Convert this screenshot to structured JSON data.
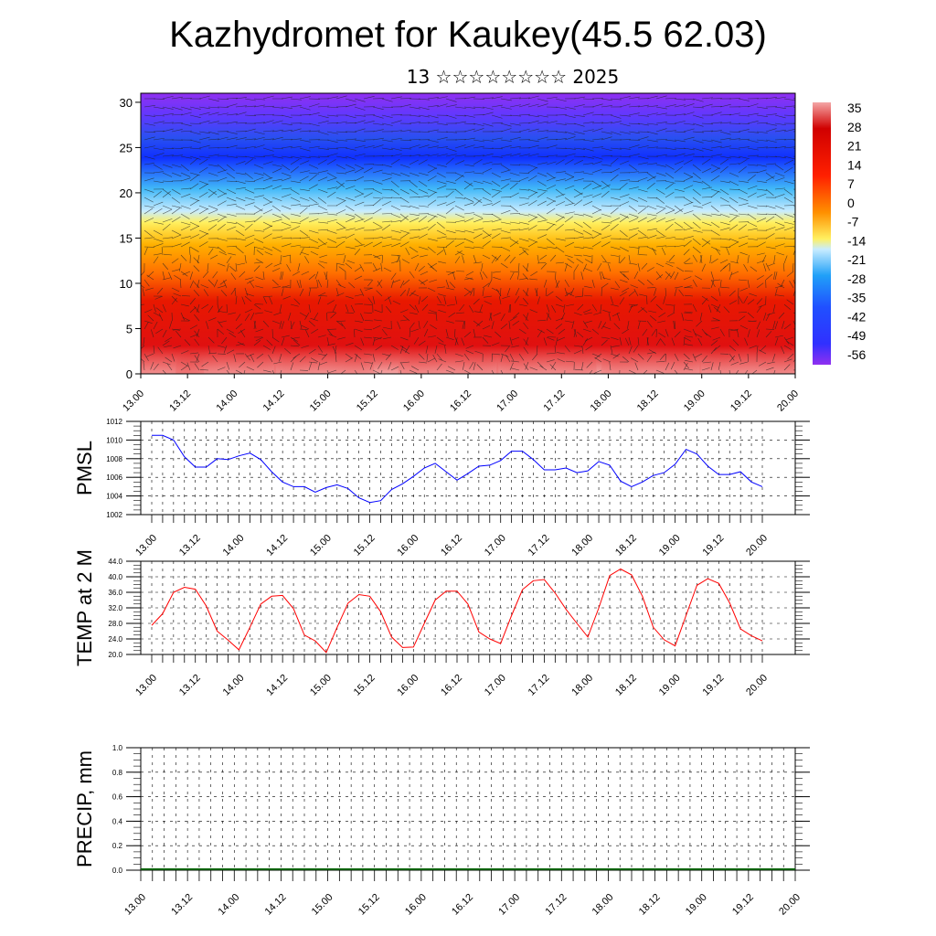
{
  "title": "Kazhydromet for Kaukey(45.5 62.03)",
  "subtitle": "13 ☆☆☆☆☆☆☆☆ 2025",
  "chart_data": [
    {
      "type": "heatmap",
      "y_ticks": [
        0,
        5,
        10,
        15,
        20,
        25,
        30
      ],
      "ylim": [
        0,
        31
      ],
      "x_ticks": [
        "13.00",
        "13.12",
        "14.00",
        "14.12",
        "15.00",
        "15.12",
        "16.00",
        "16.12",
        "17.00",
        "17.12",
        "18.00",
        "18.12",
        "19.00",
        "19.12",
        "20.00"
      ],
      "colorbar_labels": [
        "35",
        "28",
        "21",
        "14",
        "7",
        "0",
        "-7",
        "-14",
        "-21",
        "-28",
        "-35",
        "-42",
        "-49",
        "-56"
      ],
      "colors": {
        "hot": "#f0a0a0",
        "red": "#e00000",
        "orange": "#ff8800",
        "yellow": "#ffee44",
        "lightblue": "#90d8ff",
        "blue": "#2060ff",
        "purple": "#8030ff"
      }
    },
    {
      "type": "line",
      "ylabel": "PMSL",
      "ylim": [
        1002,
        1012
      ],
      "y_ticks": [
        "1012",
        "1010",
        "1008",
        "1006",
        "1004",
        "1002"
      ],
      "x_ticks": [
        "13.00",
        "13.12",
        "14.00",
        "14.12",
        "15.00",
        "15.12",
        "16.00",
        "16.12",
        "17.00",
        "17.12",
        "18.00",
        "18.12",
        "19.00",
        "19.12",
        "20.00"
      ],
      "series": [
        {
          "color": "#0000ff",
          "values": [
            1010.5,
            1010.5,
            1010.0,
            1008.2,
            1007.1,
            1007.1,
            1008.0,
            1007.9,
            1008.3,
            1008.6,
            1007.9,
            1006.6,
            1005.5,
            1005.0,
            1005.0,
            1004.4,
            1004.9,
            1005.2,
            1004.8,
            1003.8,
            1003.3,
            1003.5,
            1004.7,
            1005.3,
            1006.1,
            1007.0,
            1007.5,
            1006.6,
            1005.7,
            1006.4,
            1007.2,
            1007.3,
            1007.8,
            1008.8,
            1008.8,
            1007.9,
            1006.8,
            1006.8,
            1007.0,
            1006.5,
            1006.7,
            1007.7,
            1007.3,
            1005.6,
            1005.0,
            1005.5,
            1006.2,
            1006.5,
            1007.4,
            1009.0,
            1008.5,
            1007.2,
            1006.3,
            1006.3,
            1006.6,
            1005.5,
            1005.0
          ]
        }
      ]
    },
    {
      "type": "line",
      "ylabel": "TEMP at 2 M",
      "ylim": [
        20.0,
        44.0
      ],
      "y_ticks": [
        "44.0",
        "40.0",
        "36.0",
        "32.0",
        "28.0",
        "24.0",
        "20.0"
      ],
      "x_ticks": [
        "13.00",
        "13.12",
        "14.00",
        "14.12",
        "15.00",
        "15.12",
        "16.00",
        "16.12",
        "17.00",
        "17.12",
        "18.00",
        "18.12",
        "19.00",
        "19.12",
        "20.00"
      ],
      "series": [
        {
          "color": "#ff0000",
          "values": [
            27.5,
            30.5,
            36.0,
            37.3,
            36.8,
            32.5,
            26.0,
            23.7,
            21.2,
            27.0,
            33.0,
            35.0,
            35.2,
            31.8,
            25.0,
            23.5,
            20.5,
            27.0,
            33.2,
            35.4,
            35.0,
            31.0,
            24.5,
            21.8,
            21.9,
            28.0,
            34.0,
            36.3,
            36.3,
            33.0,
            25.8,
            24.0,
            22.8,
            30.0,
            36.7,
            39.0,
            39.3,
            35.8,
            31.6,
            28.0,
            24.5,
            32.0,
            40.3,
            42.0,
            40.5,
            35.0,
            27.0,
            23.8,
            22.2,
            30.0,
            37.8,
            39.5,
            38.3,
            33.3,
            26.6,
            24.8,
            23.5
          ]
        }
      ]
    },
    {
      "type": "bar",
      "ylabel": "PRECIP, mm",
      "ylim": [
        0.0,
        1.0
      ],
      "y_ticks": [
        "1.0",
        "0.8",
        "0.6",
        "0.4",
        "0.2",
        "0.0"
      ],
      "x_ticks": [
        "13.00",
        "13.12",
        "14.00",
        "14.12",
        "15.00",
        "15.12",
        "16.00",
        "16.12",
        "17.00",
        "17.12",
        "18.00",
        "18.12",
        "19.00",
        "19.12",
        "20.00"
      ],
      "series": [
        {
          "color": "#006000",
          "values": []
        }
      ]
    }
  ]
}
